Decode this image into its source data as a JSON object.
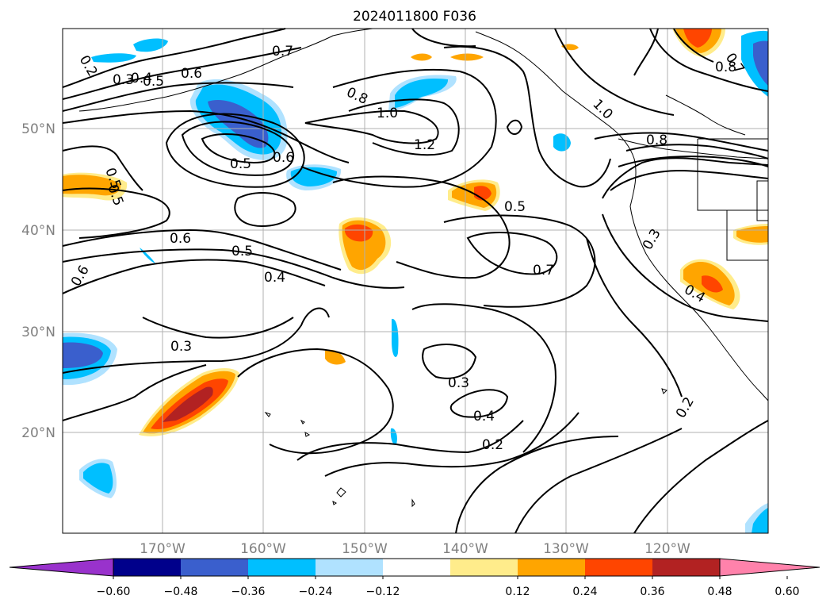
{
  "title": "2024011800 F036",
  "map": {
    "lon_labels": [
      "170°W",
      "160°W",
      "150°W",
      "140°W",
      "130°W",
      "120°W"
    ],
    "lat_labels": [
      "50°N",
      "40°N",
      "30°N",
      "20°N"
    ],
    "contour_labels": [
      "0.2",
      "0.3",
      "0.4",
      "0.5",
      "0.6",
      "0.7",
      "0.8",
      "1.0",
      "1.2",
      "0.5",
      "0.6",
      "0.5",
      "0.6",
      "0.5",
      "0.4",
      "0.3",
      "0.6",
      "0.5",
      "0.7",
      "0.3",
      "0.4",
      "0.2",
      "0.2",
      "0.8",
      "0.7",
      "0.8",
      "0.3",
      "0.4",
      "1.0",
      "0.5"
    ]
  },
  "colorbar": {
    "tick_labels": [
      "−0.60",
      "−0.48",
      "−0.36",
      "−0.24",
      "−0.12",
      "0.12",
      "0.24",
      "0.36",
      "0.48",
      "0.60"
    ],
    "colors": [
      "#9932cc",
      "#00008b",
      "#3a5fcd",
      "#00bfff",
      "#b0e2ff",
      "#ffffff",
      "#ffec8b",
      "#ffa500",
      "#ff4500",
      "#b22222",
      "#ff82ab"
    ]
  }
}
